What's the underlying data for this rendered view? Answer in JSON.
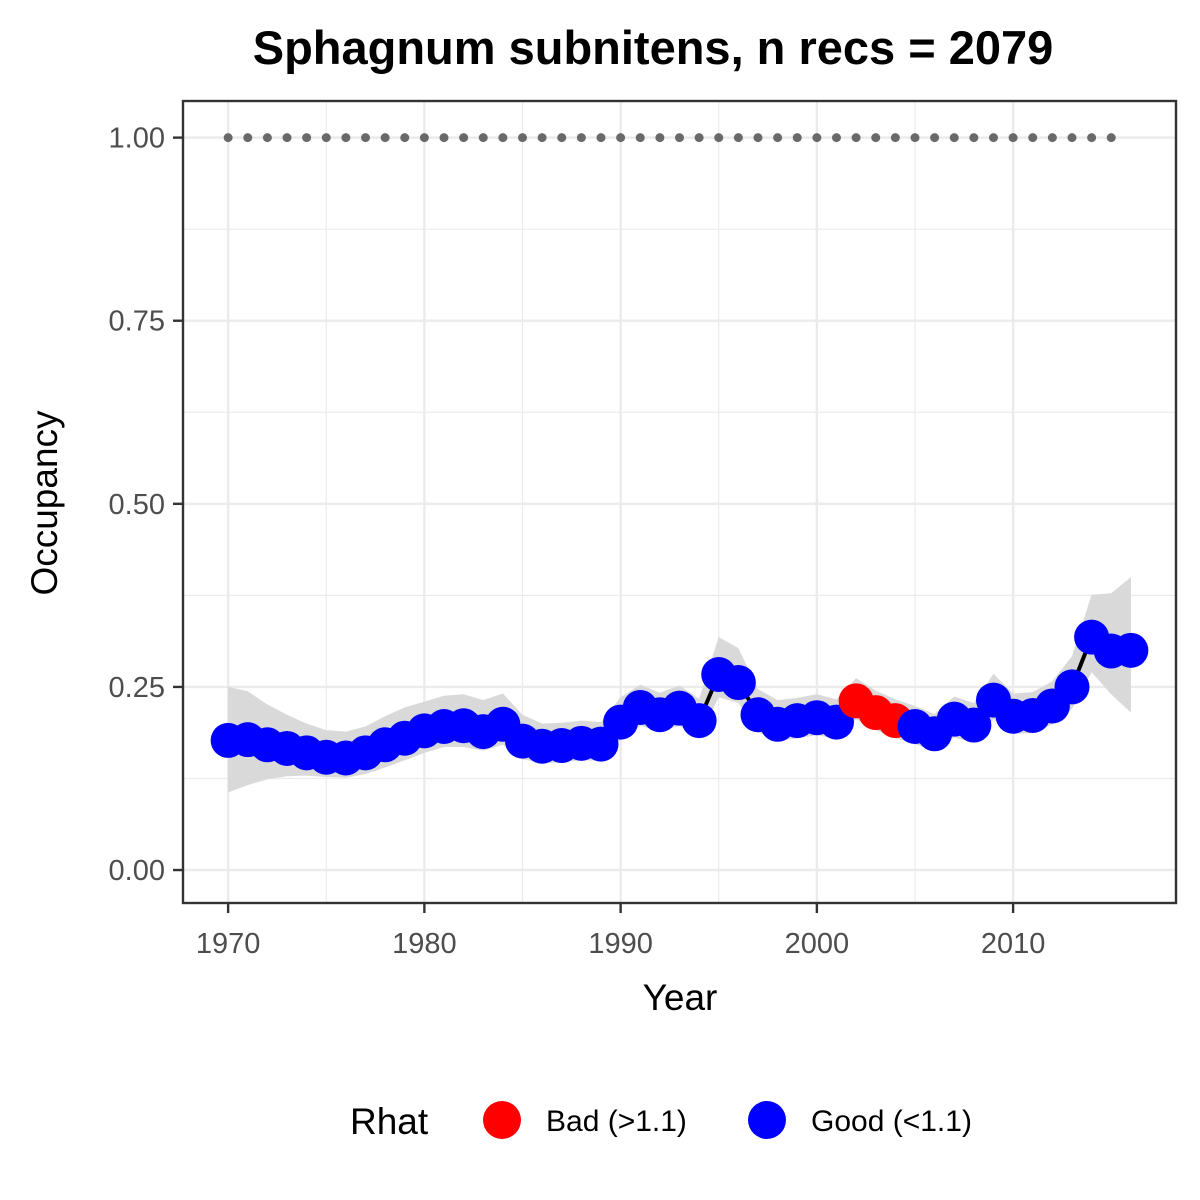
{
  "chart_data": {
    "type": "line",
    "title": "Sphagnum subnitens, n recs = 2079",
    "xlabel": "Year",
    "ylabel": "Occupancy",
    "xlim": [
      1967.7,
      2018.3
    ],
    "ylim": [
      -0.045,
      1.05
    ],
    "x_ticks": [
      1970,
      1980,
      1990,
      2000,
      2010
    ],
    "x_tick_labels": [
      "1970",
      "1980",
      "1990",
      "2000",
      "2010"
    ],
    "y_ticks": [
      0,
      0.25,
      0.5,
      0.75,
      1.0
    ],
    "y_tick_labels": [
      "0.00",
      "0.25",
      "0.50",
      "0.75",
      "1.00"
    ],
    "grid": true,
    "x": [
      1970,
      1971,
      1972,
      1973,
      1974,
      1975,
      1976,
      1977,
      1978,
      1979,
      1980,
      1981,
      1982,
      1983,
      1984,
      1985,
      1986,
      1987,
      1988,
      1989,
      1990,
      1991,
      1992,
      1993,
      1994,
      1995,
      1996,
      1997,
      1998,
      1999,
      2000,
      2001,
      2002,
      2003,
      2004,
      2005,
      2006,
      2007,
      2008,
      2009,
      2010,
      2011,
      2012,
      2013,
      2014,
      2015,
      2016
    ],
    "series": [
      {
        "values": [
          0.177,
          0.178,
          0.171,
          0.166,
          0.16,
          0.154,
          0.153,
          0.16,
          0.171,
          0.18,
          0.19,
          0.196,
          0.197,
          0.189,
          0.199,
          0.176,
          0.169,
          0.17,
          0.173,
          0.172,
          0.202,
          0.222,
          0.212,
          0.221,
          0.204,
          0.267,
          0.256,
          0.212,
          0.199,
          0.204,
          0.208,
          0.202,
          0.231,
          0.215,
          0.204,
          0.196,
          0.186,
          0.206,
          0.198,
          0.232,
          0.21,
          0.211,
          0.224,
          0.25,
          0.318,
          0.299,
          0.3
        ],
        "lower": [
          0.106,
          0.116,
          0.124,
          0.128,
          0.129,
          0.127,
          0.126,
          0.131,
          0.14,
          0.15,
          0.16,
          0.168,
          0.168,
          0.163,
          0.171,
          0.151,
          0.146,
          0.147,
          0.15,
          0.149,
          0.178,
          0.197,
          0.189,
          0.197,
          0.181,
          0.236,
          0.228,
          0.188,
          0.176,
          0.18,
          0.184,
          0.179,
          0.206,
          0.191,
          0.18,
          0.172,
          0.163,
          0.181,
          0.174,
          0.206,
          0.186,
          0.187,
          0.199,
          0.22,
          0.27,
          0.24,
          0.215
        ],
        "upper": [
          0.25,
          0.244,
          0.226,
          0.212,
          0.2,
          0.191,
          0.189,
          0.196,
          0.21,
          0.222,
          0.23,
          0.238,
          0.24,
          0.232,
          0.241,
          0.212,
          0.2,
          0.201,
          0.204,
          0.202,
          0.236,
          0.253,
          0.242,
          0.252,
          0.234,
          0.318,
          0.303,
          0.247,
          0.232,
          0.235,
          0.24,
          0.233,
          0.262,
          0.245,
          0.233,
          0.224,
          0.213,
          0.237,
          0.228,
          0.268,
          0.241,
          0.243,
          0.258,
          0.292,
          0.376,
          0.378,
          0.4
        ],
        "rhat": [
          "Good (<1.1)",
          "Good (<1.1)",
          "Good (<1.1)",
          "Good (<1.1)",
          "Good (<1.1)",
          "Good (<1.1)",
          "Good (<1.1)",
          "Good (<1.1)",
          "Good (<1.1)",
          "Good (<1.1)",
          "Good (<1.1)",
          "Good (<1.1)",
          "Good (<1.1)",
          "Good (<1.1)",
          "Good (<1.1)",
          "Good (<1.1)",
          "Good (<1.1)",
          "Good (<1.1)",
          "Good (<1.1)",
          "Good (<1.1)",
          "Good (<1.1)",
          "Good (<1.1)",
          "Good (<1.1)",
          "Good (<1.1)",
          "Good (<1.1)",
          "Good (<1.1)",
          "Good (<1.1)",
          "Good (<1.1)",
          "Good (<1.1)",
          "Good (<1.1)",
          "Good (<1.1)",
          "Good (<1.1)",
          "Bad (>1.1)",
          "Bad (>1.1)",
          "Bad (>1.1)",
          "Good (<1.1)",
          "Good (<1.1)",
          "Good (<1.1)",
          "Good (<1.1)",
          "Good (<1.1)",
          "Good (<1.1)",
          "Good (<1.1)",
          "Good (<1.1)",
          "Good (<1.1)",
          "Good (<1.1)",
          "Good (<1.1)",
          "Good (<1.1)"
        ]
      }
    ],
    "reference_points": {
      "x": [
        1970,
        1971,
        1972,
        1973,
        1974,
        1975,
        1976,
        1977,
        1978,
        1979,
        1980,
        1981,
        1982,
        1983,
        1984,
        1985,
        1986,
        1987,
        1988,
        1989,
        1990,
        1991,
        1992,
        1993,
        1994,
        1995,
        1996,
        1997,
        1998,
        1999,
        2000,
        2001,
        2002,
        2003,
        2004,
        2005,
        2006,
        2007,
        2008,
        2009,
        2010,
        2011,
        2012,
        2013,
        2014,
        2015
      ],
      "value": 1.0,
      "color": "#696969"
    },
    "legend": {
      "title": "Rhat",
      "position": "bottom",
      "entries": [
        {
          "label": "Bad (>1.1)",
          "color": "#ff0000"
        },
        {
          "label": "Good (<1.1)",
          "color": "#0000ff"
        }
      ]
    },
    "colors": {
      "line": "#000000",
      "ribbon": "#d9d9d9",
      "grid": "#ebebeb",
      "panel_border": "#333333"
    }
  }
}
